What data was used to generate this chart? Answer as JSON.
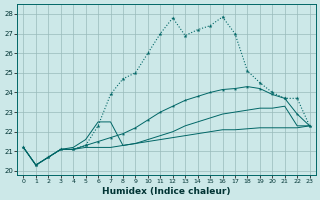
{
  "xlabel": "Humidex (Indice chaleur)",
  "bg_color": "#cce8e8",
  "grid_color": "#99bbbb",
  "line_color": "#006666",
  "xlim": [
    -0.5,
    23.5
  ],
  "ylim": [
    19.8,
    28.5
  ],
  "xticks": [
    0,
    1,
    2,
    3,
    4,
    5,
    6,
    7,
    8,
    9,
    10,
    11,
    12,
    13,
    14,
    15,
    16,
    17,
    18,
    19,
    20,
    21,
    22,
    23
  ],
  "yticks": [
    20,
    21,
    22,
    23,
    24,
    25,
    26,
    27,
    28
  ],
  "line1_x": [
    0,
    1,
    2,
    3,
    4,
    5,
    6,
    7,
    8,
    9,
    10,
    11,
    12,
    13,
    14,
    15,
    16,
    17,
    18,
    19,
    20,
    21,
    22,
    23
  ],
  "line1_y": [
    21.2,
    20.3,
    20.7,
    21.1,
    21.1,
    21.2,
    21.2,
    21.2,
    21.3,
    21.4,
    21.5,
    21.6,
    21.7,
    21.8,
    21.9,
    22.0,
    22.1,
    22.1,
    22.15,
    22.2,
    22.2,
    22.2,
    22.2,
    22.3
  ],
  "line2_x": [
    0,
    1,
    2,
    3,
    4,
    5,
    6,
    7,
    8,
    9,
    10,
    11,
    12,
    13,
    14,
    15,
    16,
    17,
    18,
    19,
    20,
    21,
    22,
    23
  ],
  "line2_y": [
    21.2,
    20.3,
    20.7,
    21.1,
    21.1,
    21.3,
    21.5,
    21.7,
    21.9,
    22.2,
    22.6,
    23.0,
    23.3,
    23.6,
    23.8,
    24.0,
    24.15,
    24.2,
    24.3,
    24.2,
    23.9,
    23.7,
    22.9,
    22.3
  ],
  "line3_x": [
    0,
    1,
    2,
    3,
    4,
    5,
    6,
    7,
    8,
    9,
    10,
    11,
    12,
    13,
    14,
    15,
    16,
    17,
    18,
    19,
    20,
    21,
    22,
    23
  ],
  "line3_y": [
    21.2,
    20.3,
    20.7,
    21.1,
    21.1,
    21.3,
    22.3,
    23.9,
    24.7,
    25.0,
    26.0,
    27.0,
    27.8,
    26.9,
    27.2,
    27.4,
    27.85,
    27.0,
    25.1,
    24.5,
    24.0,
    23.7,
    23.7,
    22.3
  ],
  "line4_x": [
    0,
    1,
    2,
    3,
    4,
    5,
    6,
    7,
    8,
    9,
    10,
    11,
    12,
    13,
    14,
    15,
    16,
    17,
    18,
    19,
    20,
    21,
    22,
    23
  ],
  "line4_y": [
    21.2,
    20.3,
    20.7,
    21.1,
    21.2,
    21.6,
    22.5,
    22.5,
    21.3,
    21.4,
    21.6,
    21.8,
    22.0,
    22.3,
    22.5,
    22.7,
    22.9,
    23.0,
    23.1,
    23.2,
    23.2,
    23.3,
    22.3,
    22.3
  ]
}
